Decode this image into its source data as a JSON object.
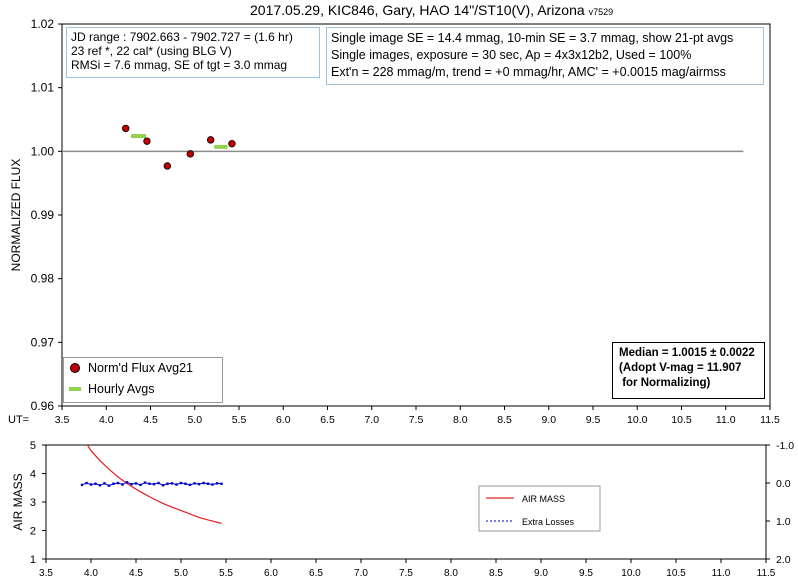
{
  "title": "2017.05.29, KIC846, Gary, HAO 14\"/ST10(V), Arizona",
  "version": "v7529",
  "info_left": [
    "JD range : 7902.663 - 7902.727 = (1.6 hr)",
    "23 ref *, 22 cal* (using BLG V)",
    "RMSi = 7.6 mmag, SE of tgt = 3.0 mmag"
  ],
  "info_right": [
    "Single image SE = 14.4 mmag, 10-min SE = 3.7 mmag, show 21-pt avgs",
    "Single images, exposure = 30 sec, Ap = 4x3x12b2, Used = 100%",
    "Ext'n = 228 mmag/m, trend = +0 mmag/hr, AMC' = +0.0015 mag/airmss"
  ],
  "median_box": "Median = 1.0015 ± 0.0022\n(Adopt V-mag = 11.907\n for Normalizing)",
  "ut_label": "UT=",
  "colors": {
    "flux_point": "#c00000",
    "hourly": "#92d050",
    "airmass": "#e02020",
    "extra": "#0000cc",
    "box_border": "#9ec3dc"
  },
  "chart_data": [
    {
      "type": "scatter",
      "ylabel": "NORMALIZED FLUX",
      "xlim": [
        3.5,
        11.5
      ],
      "ylim": [
        0.96,
        1.02
      ],
      "x_ticks": [
        "3.5",
        "4.0",
        "4.5",
        "5.0",
        "5.5",
        "6.0",
        "6.5",
        "7.0",
        "7.5",
        "8.0",
        "8.5",
        "9.0",
        "9.5",
        "10.0",
        "10.5",
        "11.0",
        "11.5"
      ],
      "y_ticks": [
        "0.96",
        "0.97",
        "0.98",
        "0.99",
        "1.00",
        "1.01",
        "1.02"
      ],
      "reference_line": {
        "y": 1.0,
        "x": [
          3.5,
          11.2
        ]
      },
      "legend": [
        "Norm'd Flux Avg21",
        "Hourly Avgs"
      ],
      "series": [
        {
          "name": "Norm'd Flux Avg21",
          "points": [
            [
              4.22,
              1.0036
            ],
            [
              4.46,
              1.0016
            ],
            [
              4.69,
              0.9977
            ],
            [
              4.95,
              0.9996
            ],
            [
              5.18,
              1.0018
            ],
            [
              5.42,
              1.0012
            ]
          ]
        },
        {
          "name": "Hourly Avgs",
          "segments": [
            [
              4.28,
              4.45,
              1.0024
            ],
            [
              5.22,
              5.37,
              1.0007
            ]
          ]
        }
      ]
    },
    {
      "type": "line",
      "ylabel": "AIR MASS",
      "xlim": [
        3.5,
        11.5
      ],
      "ylim": [
        1,
        5
      ],
      "y2lim": [
        -1.0,
        2.0
      ],
      "x_ticks": [
        "3.5",
        "4.0",
        "4.5",
        "5.0",
        "5.5",
        "6.0",
        "6.5",
        "7.0",
        "7.5",
        "8.0",
        "8.5",
        "9.0",
        "9.5",
        "10.0",
        "10.5",
        "11.0",
        "11.5"
      ],
      "y_ticks": [
        "1",
        "2",
        "3",
        "4",
        "5"
      ],
      "y2_ticks": [
        "-1.0",
        "0.0",
        "1.0",
        "2.0"
      ],
      "legend": [
        "AIR MASS",
        "Extra Losses"
      ],
      "series": [
        {
          "name": "AIR MASS",
          "x": [
            3.95,
            4.0,
            4.1,
            4.2,
            4.3,
            4.4,
            4.5,
            4.6,
            4.7,
            4.8,
            4.9,
            5.0,
            5.1,
            5.2,
            5.3,
            5.45
          ],
          "y": [
            5.05,
            4.8,
            4.45,
            4.15,
            3.88,
            3.65,
            3.45,
            3.27,
            3.1,
            2.95,
            2.82,
            2.7,
            2.58,
            2.46,
            2.37,
            2.25
          ]
        },
        {
          "name": "Extra Losses",
          "x": [
            3.9,
            3.95,
            4.0,
            4.05,
            4.1,
            4.15,
            4.2,
            4.25,
            4.3,
            4.35,
            4.4,
            4.45,
            4.5,
            4.55,
            4.6,
            4.65,
            4.7,
            4.75,
            4.8,
            4.85,
            4.9,
            4.95,
            5.0,
            5.05,
            5.1,
            5.15,
            5.2,
            5.25,
            5.3,
            5.35,
            5.4,
            5.45
          ],
          "y": [
            0.05,
            0.0,
            0.04,
            0.02,
            0.06,
            0.01,
            0.07,
            0.02,
            0.0,
            0.04,
            -0.02,
            0.03,
            0.01,
            0.05,
            -0.01,
            0.02,
            0.03,
            0.0,
            0.06,
            0.02,
            0.01,
            0.04,
            0.0,
            0.02,
            0.05,
            0.01,
            0.03,
            0.0,
            0.02,
            0.04,
            0.01,
            0.02
          ]
        }
      ]
    }
  ]
}
